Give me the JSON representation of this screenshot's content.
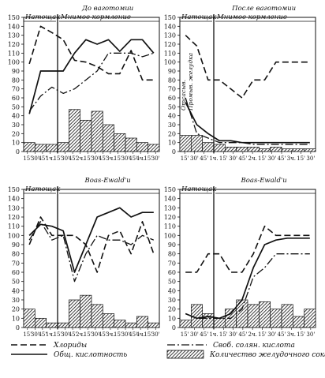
{
  "figure": {
    "title": "",
    "legend": {
      "position": "bottom",
      "entries": [
        {
          "key": "chlorides",
          "label": "Хлориды",
          "style": "dashed"
        },
        {
          "key": "free_hcl",
          "label": "Своб. солян. кислота",
          "style": "dash-dot"
        },
        {
          "key": "total_acid",
          "label": "Общ. кислотность",
          "style": "solid"
        },
        {
          "key": "volume",
          "label": "Количество желудочного сока",
          "style": "hatched-bars"
        }
      ]
    },
    "colors": {
      "ink": "#111111",
      "background": "#ffffff"
    }
  },
  "chart_data": [
    {
      "type": "line",
      "title": "До ваготомии",
      "phase_labels": [
        "Натощак",
        "Мнимое кормление"
      ],
      "ylim": [
        0,
        150
      ],
      "yticks": [
        0,
        10,
        20,
        30,
        40,
        50,
        60,
        70,
        80,
        90,
        100,
        110,
        120,
        130,
        140,
        150
      ],
      "grid": false,
      "x_tick_labels": [
        "15'",
        "30'",
        "45'",
        "1ч.",
        "15'",
        "30'",
        "45'",
        "2ч.",
        "15'",
        "30'",
        "45'",
        "3ч.",
        "15'",
        "30'",
        "45'",
        "4ч.",
        "15'",
        "30'"
      ],
      "n_intervals": 12,
      "divider_x": 3,
      "series": [
        {
          "key": "chlorides",
          "x": [
            0,
            1,
            2,
            3,
            4,
            5,
            6,
            7,
            8,
            9,
            10,
            11
          ],
          "values": [
            98,
            140,
            133,
            125,
            102,
            100,
            95,
            87,
            87,
            113,
            80,
            80
          ]
        },
        {
          "key": "free_hcl",
          "x": [
            0,
            1,
            2,
            3,
            4,
            5,
            6,
            7,
            8,
            9,
            10,
            11
          ],
          "values": [
            45,
            62,
            72,
            65,
            70,
            80,
            90,
            110,
            110,
            110,
            106,
            110
          ]
        },
        {
          "key": "total_acid",
          "x": [
            0,
            1,
            2,
            3,
            4,
            5,
            6,
            7,
            8,
            9,
            10,
            11
          ],
          "values": [
            42,
            90,
            90,
            90,
            110,
            125,
            120,
            125,
            112,
            125,
            125,
            110
          ]
        },
        {
          "key": "volume",
          "values": [
            10,
            8,
            8,
            10,
            47,
            35,
            45,
            30,
            20,
            15,
            10,
            8
          ]
        }
      ]
    },
    {
      "type": "line",
      "title": "После ваготомии",
      "phase_labels": [
        "Натощак",
        "Мнимое кормление"
      ],
      "vertical_labels": [
        "Отсасыв.",
        "Промыв. желудка"
      ],
      "ylim": [
        0,
        150
      ],
      "yticks": [
        0,
        10,
        20,
        30,
        40,
        50,
        60,
        70,
        80,
        90,
        100,
        110,
        120,
        130,
        140,
        150
      ],
      "grid": false,
      "x_tick_labels": [
        "15'",
        "30'",
        "45'",
        "1ч.",
        "15'",
        "30'",
        "45'",
        "2ч.",
        "15'",
        "30'",
        "45'",
        "3ч.",
        "15'",
        "30'"
      ],
      "n_intervals": 12,
      "divider_x": 3,
      "series": [
        {
          "key": "chlorides",
          "x": [
            0,
            1,
            2,
            3,
            4,
            5,
            6,
            7,
            8,
            9,
            10,
            11
          ],
          "values": [
            130,
            118,
            80,
            80,
            70,
            60,
            80,
            80,
            100,
            100,
            100,
            100
          ]
        },
        {
          "key": "free_hcl",
          "x": [
            0,
            1,
            2,
            3,
            4,
            5,
            6,
            7,
            8,
            9,
            10,
            11
          ],
          "values": [
            60,
            20,
            15,
            10,
            10,
            10,
            8,
            8,
            8,
            8,
            8,
            8
          ]
        },
        {
          "key": "total_acid",
          "x": [
            0,
            1,
            2,
            3,
            4,
            5,
            6,
            7,
            8,
            9,
            10,
            11
          ],
          "values": [
            55,
            30,
            20,
            12,
            12,
            10,
            10,
            10,
            10,
            10,
            10,
            10
          ]
        },
        {
          "key": "volume",
          "values": [
            18,
            18,
            10,
            8,
            5,
            5,
            5,
            3,
            5,
            3,
            3,
            3
          ]
        }
      ]
    },
    {
      "type": "line",
      "title": "Boas-Ewald'u",
      "phase_labels": [
        "Натощак",
        ""
      ],
      "ylim": [
        0,
        150
      ],
      "yticks": [
        0,
        10,
        20,
        30,
        40,
        50,
        60,
        70,
        80,
        90,
        100,
        110,
        120,
        130,
        140,
        150
      ],
      "grid": false,
      "x_tick_labels": [
        "15'",
        "30'",
        "45'",
        "1ч.",
        "15'",
        "30'",
        "45'",
        "2ч.",
        "15'",
        "30'",
        "45'",
        "3ч.",
        "15'",
        "30'",
        "45'",
        "4ч.",
        "15'",
        "30'"
      ],
      "n_intervals": 12,
      "divider_x": 3,
      "series": [
        {
          "key": "chlorides",
          "x": [
            0,
            1,
            2,
            3,
            4,
            5,
            6,
            7,
            8,
            9,
            10,
            11
          ],
          "values": [
            90,
            120,
            100,
            100,
            100,
            90,
            60,
            100,
            105,
            80,
            115,
            80
          ]
        },
        {
          "key": "free_hcl",
          "x": [
            0,
            1,
            2,
            3,
            4,
            5,
            6,
            7,
            8,
            9,
            10,
            11
          ],
          "values": [
            95,
            115,
            95,
            100,
            50,
            80,
            100,
            95,
            95,
            90,
            100,
            95
          ]
        },
        {
          "key": "total_acid",
          "x": [
            0,
            1,
            2,
            3,
            4,
            5,
            6,
            7,
            8,
            9,
            10,
            11
          ],
          "values": [
            100,
            112,
            110,
            105,
            60,
            90,
            120,
            125,
            130,
            120,
            125,
            125
          ]
        },
        {
          "key": "volume",
          "values": [
            20,
            10,
            5,
            5,
            30,
            35,
            25,
            15,
            8,
            5,
            12,
            5
          ]
        }
      ]
    },
    {
      "type": "line",
      "title": "Boas-Ewald'u",
      "phase_labels": [
        "Натощак",
        ""
      ],
      "ylim": [
        0,
        150
      ],
      "yticks": [
        0,
        10,
        20,
        30,
        40,
        50,
        60,
        70,
        80,
        90,
        100,
        110,
        120,
        130,
        140,
        150
      ],
      "grid": false,
      "x_tick_labels": [
        "15'",
        "30'",
        "45'",
        "1ч.",
        "15'",
        "30'",
        "45'",
        "2ч.",
        "15'",
        "30'",
        "45'",
        "3ч.",
        "15'",
        "30'"
      ],
      "n_intervals": 12,
      "divider_x": 3,
      "series": [
        {
          "key": "chlorides",
          "x": [
            0,
            1,
            2,
            3,
            4,
            5,
            6,
            7,
            8,
            9,
            10,
            11
          ],
          "values": [
            60,
            60,
            80,
            80,
            60,
            60,
            80,
            110,
            100,
            100,
            100,
            100
          ]
        },
        {
          "key": "free_hcl",
          "x": [
            0,
            1,
            2,
            3,
            4,
            5,
            6,
            7,
            8,
            9,
            10,
            11
          ],
          "values": [
            15,
            10,
            10,
            10,
            10,
            20,
            55,
            65,
            80,
            80,
            80,
            80
          ]
        },
        {
          "key": "total_acid",
          "x": [
            0,
            1,
            2,
            3,
            4,
            5,
            6,
            7,
            8,
            9,
            10,
            11
          ],
          "values": [
            15,
            10,
            12,
            10,
            15,
            30,
            65,
            90,
            95,
            97,
            97,
            97
          ]
        },
        {
          "key": "volume",
          "values": [
            8,
            25,
            15,
            10,
            20,
            30,
            25,
            28,
            20,
            25,
            12,
            20
          ]
        }
      ]
    }
  ]
}
